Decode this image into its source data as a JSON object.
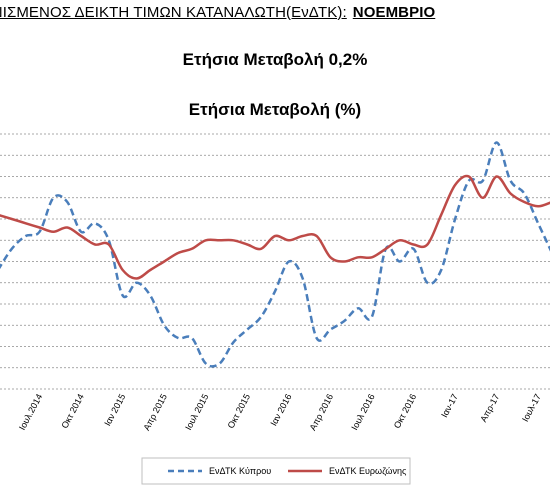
{
  "header": {
    "title_prefix": "ΟΝΙΣΜΕΝΟΣ ΔΕΙΚΤΗ ΤΙΜΩΝ ΚΑΤΑΝΑΛΩΤΗ(ΕνΔΤΚ):",
    "month": "ΝΟΕΜΒΡΙΟ"
  },
  "subtitle": "Ετήσια Μεταβολή 0,2%",
  "colors": {
    "cyprus": "#4a7ebb",
    "eurozone": "#be4b48",
    "grid": "#8c8c8c",
    "legend_border": "#bfbfbf"
  },
  "chart_data": {
    "type": "line",
    "title": "Ετήσια Μεταβολή (%)",
    "xlabel": "",
    "ylabel": "",
    "grid": true,
    "legend_position": "bottom",
    "tick_labels": [
      "Ιουλ.2014",
      "Οκτ 2014",
      "Ιαν 2015",
      "Απρ 2015",
      "Ιουλ 2015",
      "Οκτ 2015",
      "Ιαν 2016",
      "Απρ 2016",
      "Ιουλ 2016",
      "Οκτ 2016",
      "Ιαν-17",
      "Απρ-17",
      "Ιουλ-17"
    ],
    "x": [
      "2014-04",
      "2014-05",
      "2014-06",
      "2014-07",
      "2014-08",
      "2014-09",
      "2014-10",
      "2014-11",
      "2014-12",
      "2015-01",
      "2015-02",
      "2015-03",
      "2015-04",
      "2015-05",
      "2015-06",
      "2015-07",
      "2015-08",
      "2015-09",
      "2015-10",
      "2015-11",
      "2015-12",
      "2016-01",
      "2016-02",
      "2016-03",
      "2016-04",
      "2016-05",
      "2016-06",
      "2016-07",
      "2016-08",
      "2016-09",
      "2016-10",
      "2016-11",
      "2016-12",
      "2017-01",
      "2017-02",
      "2017-03",
      "2017-04",
      "2017-05",
      "2017-06",
      "2017-07",
      "2017-08"
    ],
    "series": [
      {
        "name": "ΕνΔΤΚ Κύπρου",
        "style": "dashed",
        "values": [
          -0.2,
          0.3,
          0.6,
          0.7,
          1.5,
          1.4,
          0.7,
          0.9,
          0.5,
          -0.8,
          -0.5,
          -0.8,
          -1.5,
          -1.8,
          -1.8,
          -2.4,
          -2.4,
          -1.9,
          -1.6,
          -1.3,
          -0.7,
          0.0,
          -0.4,
          -1.8,
          -1.6,
          -1.4,
          -1.1,
          -1.3,
          0.3,
          0.0,
          0.3,
          -0.5,
          -0.2,
          1.0,
          1.9,
          1.9,
          2.8,
          1.9,
          1.6,
          0.9,
          0.2
        ]
      },
      {
        "name": "ΕνΔΤΚ Ευρωζώνης",
        "style": "solid",
        "values": [
          1.1,
          1.0,
          0.9,
          0.8,
          0.7,
          0.8,
          0.6,
          0.4,
          0.4,
          -0.2,
          -0.4,
          -0.2,
          0.0,
          0.2,
          0.3,
          0.5,
          0.5,
          0.5,
          0.4,
          0.3,
          0.6,
          0.5,
          0.6,
          0.6,
          0.1,
          0.0,
          0.1,
          0.1,
          0.3,
          0.5,
          0.4,
          0.4,
          1.1,
          1.8,
          2.0,
          1.5,
          2.0,
          1.6,
          1.4,
          1.3,
          1.4
        ]
      }
    ],
    "ylim": [
      -3.0,
      3.0
    ]
  }
}
